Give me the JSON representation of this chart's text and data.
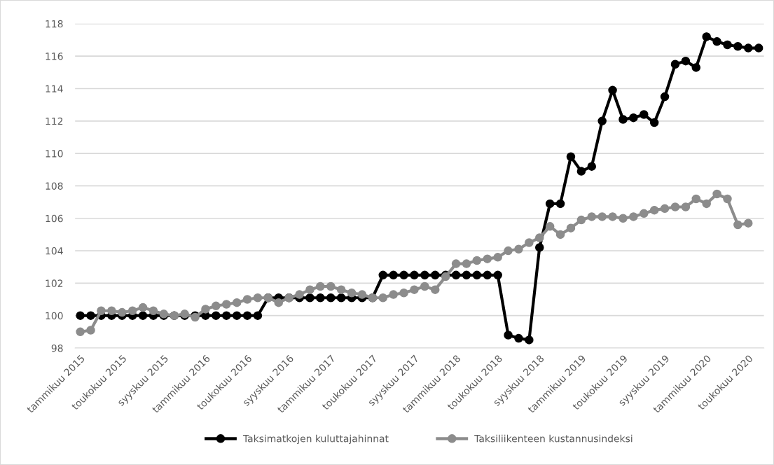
{
  "chart_data": {
    "type": "line",
    "categories": [
      "tammikuu 2015",
      null,
      null,
      null,
      "toukokuu 2015",
      null,
      null,
      null,
      "syyskuu 2015",
      null,
      null,
      null,
      "tammikuu 2016",
      null,
      null,
      null,
      "toukokuu 2016",
      null,
      null,
      null,
      "syyskuu 2016",
      null,
      null,
      null,
      "tammikuu 2017",
      null,
      null,
      null,
      "toukokuu 2017",
      null,
      null,
      null,
      "syyskuu 2017",
      null,
      null,
      null,
      "tammikuu 2018",
      null,
      null,
      null,
      "toukokuu 2018",
      null,
      null,
      null,
      "syyskuu 2018",
      null,
      null,
      null,
      "tammikuu 2019",
      null,
      null,
      null,
      "toukokuu 2019",
      null,
      null,
      null,
      "syyskuu 2019",
      null,
      null,
      null,
      "tammikuu 2020",
      null,
      null,
      null,
      "toukokuu 2020",
      null
    ],
    "series": [
      {
        "name": "Taksimatkojen kuluttajahinnat",
        "color": "#000000",
        "values": [
          100,
          100,
          100,
          100,
          100,
          100,
          100,
          100,
          100,
          100,
          100,
          100,
          100,
          100,
          100,
          100,
          100,
          100,
          101.1,
          101.1,
          101.1,
          101.1,
          101.1,
          101.1,
          101.1,
          101.1,
          101.1,
          101.1,
          101.1,
          102.5,
          102.5,
          102.5,
          102.5,
          102.5,
          102.5,
          102.5,
          102.5,
          102.5,
          102.5,
          102.5,
          102.5,
          98.8,
          98.6,
          98.5,
          104.2,
          106.9,
          106.9,
          109.8,
          108.9,
          109.2,
          112.0,
          113.9,
          112.1,
          112.2,
          112.4,
          111.9,
          113.5,
          115.5,
          115.7,
          115.3,
          117.2,
          116.9,
          116.7,
          116.6,
          116.5,
          116.5
        ]
      },
      {
        "name": "Taksiliikenteen kustannusindeksi",
        "color": "#8c8c8c",
        "values": [
          99.0,
          99.1,
          100.3,
          100.3,
          100.2,
          100.3,
          100.5,
          100.3,
          100.1,
          100.0,
          100.1,
          99.9,
          100.4,
          100.6,
          100.7,
          100.8,
          101.0,
          101.1,
          101.1,
          100.8,
          101.1,
          101.3,
          101.6,
          101.8,
          101.8,
          101.6,
          101.4,
          101.3,
          101.1,
          101.1,
          101.3,
          101.4,
          101.6,
          101.8,
          101.6,
          102.4,
          103.2,
          103.2,
          103.4,
          103.5,
          103.6,
          104.0,
          104.1,
          104.5,
          104.8,
          105.5,
          105.0,
          105.4,
          105.9,
          106.1,
          106.1,
          106.1,
          106.0,
          106.1,
          106.3,
          106.5,
          106.6,
          106.7,
          106.7,
          107.2,
          106.9,
          107.5,
          107.2,
          105.6,
          105.7,
          null
        ]
      }
    ],
    "ylim": [
      98,
      118
    ],
    "yticks": [
      98,
      100,
      102,
      104,
      106,
      108,
      110,
      112,
      114,
      116,
      118
    ],
    "grid": "y",
    "legend": "bottom",
    "marker": "circle",
    "line_style": "solid"
  }
}
